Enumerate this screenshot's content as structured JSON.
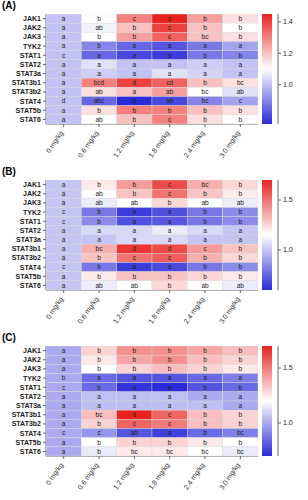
{
  "chart_data": [
    {
      "type": "heatmap",
      "title": "(A)",
      "x": [
        "0 mg/kg",
        "0.6 mg/kg",
        "1.2 mg/kg",
        "1.8 mg/kg",
        "2.4 mg/kg",
        "3.0 mg/kg"
      ],
      "y": [
        "JAK1",
        "JAK2",
        "JAK3",
        "TYK2",
        "STAT1",
        "STAT2",
        "STAT3a",
        "STAT3b1",
        "STAT3b2",
        "STAT4",
        "STAT5b",
        "STAT6"
      ],
      "values": [
        [
          1.0,
          1.1,
          1.3,
          1.45,
          1.25,
          1.15
        ],
        [
          1.0,
          1.08,
          1.2,
          1.4,
          1.2,
          1.1
        ],
        [
          1.0,
          1.1,
          1.25,
          1.35,
          1.2,
          1.15
        ],
        [
          1.0,
          0.9,
          0.85,
          0.82,
          0.88,
          0.95
        ],
        [
          1.0,
          0.85,
          0.8,
          0.78,
          0.88,
          0.9
        ],
        [
          1.0,
          1.05,
          1.0,
          1.0,
          1.02,
          1.0
        ],
        [
          1.0,
          1.02,
          1.0,
          1.05,
          1.03,
          1.0
        ],
        [
          1.0,
          1.3,
          1.4,
          1.35,
          1.2,
          1.15
        ],
        [
          1.0,
          1.15,
          1.2,
          1.25,
          1.1,
          1.05
        ],
        [
          1.0,
          0.85,
          0.75,
          0.8,
          0.9,
          0.95
        ],
        [
          1.0,
          1.15,
          1.3,
          1.3,
          1.2,
          1.15
        ],
        [
          1.0,
          1.1,
          1.2,
          1.3,
          1.15,
          1.1
        ]
      ],
      "cell_labels": [
        [
          "a",
          "b",
          "c",
          "c",
          "b",
          "b"
        ],
        [
          "a",
          "ab",
          "b",
          "c",
          "b",
          "b"
        ],
        [
          "a",
          "b",
          "b",
          "c",
          "bc",
          "b"
        ],
        [
          "a",
          "b",
          "a",
          "a",
          "a",
          "a"
        ],
        [
          "c",
          "a",
          "a",
          "a",
          "b",
          "b"
        ],
        [
          "a",
          "a",
          "a",
          "a",
          "a",
          "a"
        ],
        [
          "a",
          "a",
          "a",
          "a",
          "a",
          "a"
        ],
        [
          "a",
          "bcd",
          "d",
          "cd",
          "b",
          "bc"
        ],
        [
          "a",
          "ab",
          "a",
          "ab",
          "bc",
          "ab"
        ],
        [
          "d",
          "abc",
          "a",
          "ab",
          "bc",
          "c"
        ],
        [
          "a",
          "b",
          "b",
          "b",
          "b",
          "b"
        ],
        [
          "a",
          "ab",
          "b",
          "c",
          "b",
          "b"
        ]
      ],
      "colors": [
        "#2a2ad8",
        "#ffffff",
        "#e8231f"
      ],
      "colorbar": {
        "range": [
          0.75,
          1.45
        ],
        "ticks": [
          {
            "value": 1.0,
            "label": "1.0"
          },
          1.2,
          1.4
        ]
      }
    },
    {
      "type": "heatmap",
      "title": "(B)",
      "x": [
        "0 mg/kg",
        "0.6 mg/kg",
        "1.2 mg/kg",
        "1.8 mg/kg",
        "2.4 mg/kg",
        "3.0 mg/kg"
      ],
      "y": [
        "JAK1",
        "JAK2",
        "JAK3",
        "TYK2",
        "STAT1",
        "STAT2",
        "STAT3a",
        "STAT3b1",
        "STAT3b2",
        "STAT4",
        "STAT5b",
        "STAT6"
      ],
      "values": [
        [
          1.0,
          1.2,
          1.4,
          1.6,
          1.35,
          1.25
        ],
        [
          1.0,
          1.15,
          1.3,
          1.5,
          1.3,
          1.2
        ],
        [
          1.0,
          1.1,
          1.15,
          1.25,
          1.15,
          1.1
        ],
        [
          1.0,
          0.8,
          0.65,
          0.7,
          0.8,
          0.85
        ],
        [
          1.0,
          0.85,
          0.7,
          0.72,
          0.8,
          0.85
        ],
        [
          1.0,
          1.05,
          1.05,
          1.1,
          1.05,
          1.0
        ],
        [
          1.0,
          1.0,
          1.05,
          1.05,
          1.0,
          1.0
        ],
        [
          1.0,
          1.35,
          1.65,
          1.6,
          1.4,
          1.3
        ],
        [
          1.0,
          1.3,
          1.5,
          1.55,
          1.35,
          1.25
        ],
        [
          1.0,
          0.8,
          0.65,
          0.68,
          0.8,
          0.85
        ],
        [
          1.0,
          1.2,
          1.3,
          1.3,
          1.25,
          1.2
        ],
        [
          1.0,
          1.1,
          1.15,
          1.25,
          1.15,
          1.1
        ]
      ],
      "cell_labels": [
        [
          "a",
          "b",
          "b",
          "c",
          "bc",
          "b"
        ],
        [
          "a",
          "ab",
          "b",
          "c",
          "b",
          "b"
        ],
        [
          "a",
          "ab",
          "ab",
          "b",
          "ab",
          "ab"
        ],
        [
          "c",
          "b",
          "a",
          "a",
          "b",
          "b"
        ],
        [
          "c",
          "b",
          "a",
          "a",
          "b",
          "b"
        ],
        [
          "a",
          "a",
          "a",
          "a",
          "a",
          "a"
        ],
        [
          "a",
          "a",
          "a",
          "a",
          "a",
          "a"
        ],
        [
          "a",
          "bc",
          "d",
          "d",
          "c",
          "b"
        ],
        [
          "a",
          "b",
          "c",
          "c",
          "b",
          "b"
        ],
        [
          "c",
          "b",
          "a",
          "a",
          "b",
          "b"
        ],
        [
          "a",
          "b",
          "b",
          "b",
          "b",
          "b"
        ],
        [
          "a",
          "ab",
          "ab",
          "b",
          "ab",
          "ab"
        ]
      ],
      "colors": [
        "#2a2ad8",
        "#ffffff",
        "#e8231f"
      ],
      "colorbar": {
        "range": [
          0.6,
          1.7
        ],
        "ticks": [
          {
            "value": 1.0,
            "label": "1.0"
          },
          1.5
        ]
      }
    },
    {
      "type": "heatmap",
      "title": "(C)",
      "x": [
        "0 mg/kg",
        "0.6 mg/kg",
        "1.2 mg/kg",
        "1.8 mg/kg",
        "2.4 mg/kg",
        "3.0 mg/kg"
      ],
      "y": [
        "JAK1",
        "JAK2",
        "JAK3",
        "TYK2",
        "STAT1",
        "STAT2",
        "STAT3a",
        "STAT3b1",
        "STAT3b2",
        "STAT4",
        "STAT5b",
        "STAT6"
      ],
      "values": [
        [
          1.0,
          1.3,
          1.45,
          1.45,
          1.4,
          1.35
        ],
        [
          1.0,
          1.25,
          1.4,
          1.45,
          1.35,
          1.3
        ],
        [
          1.0,
          1.2,
          1.3,
          1.35,
          1.3,
          1.25
        ],
        [
          1.0,
          0.85,
          0.8,
          0.8,
          0.85,
          0.9
        ],
        [
          1.0,
          0.85,
          0.72,
          0.7,
          0.8,
          0.85
        ],
        [
          1.0,
          1.05,
          1.05,
          1.05,
          1.0,
          1.0
        ],
        [
          1.0,
          1.05,
          1.05,
          1.05,
          1.05,
          1.0
        ],
        [
          1.0,
          1.35,
          1.7,
          1.55,
          1.35,
          1.3
        ],
        [
          1.0,
          1.3,
          1.55,
          1.5,
          1.35,
          1.3
        ],
        [
          1.0,
          0.95,
          0.8,
          0.75,
          0.85,
          0.9
        ],
        [
          1.0,
          1.2,
          1.3,
          1.3,
          1.25,
          1.2
        ],
        [
          1.0,
          1.15,
          1.25,
          1.25,
          1.2,
          1.15
        ]
      ],
      "cell_labels": [
        [
          "a",
          "b",
          "b",
          "b",
          "b",
          "b"
        ],
        [
          "a",
          "b",
          "b",
          "b",
          "b",
          "b"
        ],
        [
          "a",
          "b",
          "b",
          "b",
          "b",
          "b"
        ],
        [
          "b",
          "a",
          "a",
          "a",
          "a",
          "a"
        ],
        [
          "c",
          "b",
          "a",
          "a",
          "b",
          "b"
        ],
        [
          "a",
          "a",
          "a",
          "a",
          "a",
          "a"
        ],
        [
          "a",
          "a",
          "a",
          "a",
          "a",
          "a"
        ],
        [
          "a",
          "bc",
          "d",
          "c",
          "b",
          "b"
        ],
        [
          "a",
          "b",
          "c",
          "c",
          "b",
          "b"
        ],
        [
          "c",
          "c",
          "ab",
          "a",
          "b",
          "bc"
        ],
        [
          "a",
          "b",
          "b",
          "b",
          "b",
          "b"
        ],
        [
          "a",
          "b",
          "bc",
          "bc",
          "bc",
          "bc"
        ]
      ],
      "colors": [
        "#2a2ad8",
        "#ffffff",
        "#e8231f"
      ],
      "colorbar": {
        "range": [
          0.7,
          1.7
        ],
        "ticks": [
          {
            "value": 1.0,
            "label": "1.0"
          },
          1.5
        ]
      }
    }
  ]
}
